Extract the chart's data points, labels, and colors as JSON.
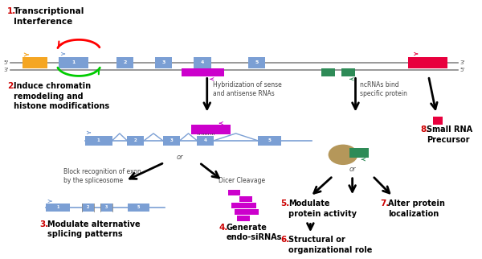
{
  "label1": "1. Transcriptional\n    Interference",
  "label2": "2. Induce chromatin\n    remodeling and\n    histone modifications",
  "label3": "3. Modulate alternative\n    splicing patterns",
  "label4": "4. Generate\n    endo-siRNAs",
  "label5": "5. Modulate\nprotein activity",
  "label6": "6. Structural or\norganizational role",
  "label7": "7. Alter protein\nlocalization",
  "label8": "8. Small RNA\nPrecursor",
  "text_hybridization": "Hybridization of sense\nand antisense RNAs",
  "text_ncRNA": "ncRNAs bind\nspecific protein",
  "text_block": "Block recognition of exon\nby the spliceosome",
  "text_dicer": "Dicer Cleavage",
  "text_or1": "or",
  "text_or2": "or",
  "orange": "#f5a623",
  "blue_exon": "#7b9fd4",
  "magenta": "#cc00cc",
  "green_block": "#2e8b57",
  "red_block": "#e8003d",
  "red_label": "#cc0000",
  "tan": "#b5975a",
  "arrow_black": "#111111"
}
